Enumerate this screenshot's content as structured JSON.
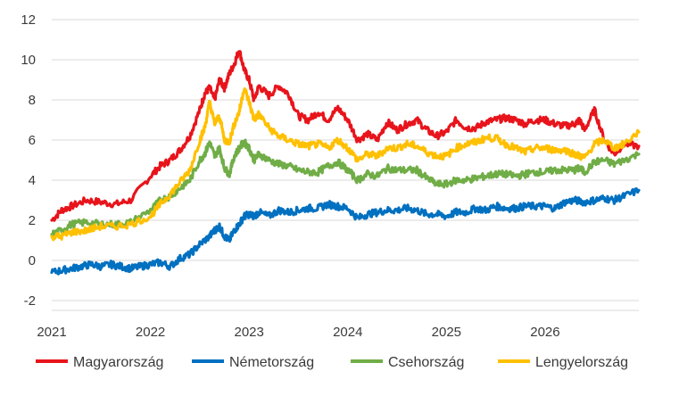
{
  "chart_data": {
    "type": "line",
    "title": "",
    "xlabel": "",
    "ylabel": "",
    "xlim": [
      2021.0,
      2026.95
    ],
    "ylim": [
      -2,
      12
    ],
    "x_ticks": [
      "2021",
      "2022",
      "2023",
      "2024",
      "2025",
      "2026"
    ],
    "y_ticks": [
      "12",
      "10",
      "8",
      "6",
      "4",
      "2",
      "0",
      "-2"
    ],
    "grid": true,
    "legend_position": "bottom",
    "series": [
      {
        "name": "Magyarország",
        "color": "#e8141b",
        "x": [
          2021.0,
          2021.1,
          2021.2,
          2021.35,
          2021.5,
          2021.65,
          2021.8,
          2022.0,
          2022.1,
          2022.2,
          2022.3,
          2022.4,
          2022.5,
          2022.55,
          2022.6,
          2022.65,
          2022.7,
          2022.75,
          2022.8,
          2022.85,
          2022.9,
          2022.95,
          2023.0,
          2023.05,
          2023.1,
          2023.2,
          2023.3,
          2023.4,
          2023.5,
          2023.6,
          2023.7,
          2023.8,
          2023.9,
          2024.0,
          2024.1,
          2024.2,
          2024.3,
          2024.4,
          2024.5,
          2024.6,
          2024.7,
          2024.8,
          2024.9,
          2025.0,
          2025.1,
          2025.2,
          2025.3,
          2025.4,
          2025.5,
          2025.6,
          2025.7,
          2025.8,
          2025.9,
          2026.0,
          2026.1,
          2026.2,
          2026.3,
          2026.35,
          2026.4,
          2026.5,
          2026.6,
          2026.7,
          2026.8,
          2026.95
        ],
        "values": [
          2.0,
          2.5,
          2.7,
          3.0,
          2.9,
          2.8,
          3.0,
          4.2,
          4.7,
          5.0,
          5.5,
          6.2,
          7.5,
          8.3,
          8.6,
          8.0,
          9.0,
          8.6,
          9.3,
          9.8,
          10.5,
          9.5,
          9.0,
          8.0,
          8.7,
          8.2,
          8.7,
          8.3,
          7.2,
          7.0,
          7.4,
          7.0,
          7.6,
          7.0,
          6.0,
          6.3,
          6.0,
          6.9,
          6.5,
          6.8,
          7.0,
          6.5,
          6.2,
          6.4,
          7.0,
          6.6,
          6.6,
          6.9,
          7.0,
          7.1,
          7.0,
          6.8,
          7.0,
          7.0,
          6.8,
          6.7,
          6.8,
          7.0,
          6.5,
          7.5,
          6.0,
          5.3,
          5.8,
          5.7
        ]
      },
      {
        "name": "Németország",
        "color": "#0070c0",
        "x": [
          2021.0,
          2021.1,
          2021.2,
          2021.3,
          2021.4,
          2021.5,
          2021.6,
          2021.7,
          2021.8,
          2021.9,
          2022.0,
          2022.1,
          2022.2,
          2022.3,
          2022.4,
          2022.5,
          2022.6,
          2022.65,
          2022.7,
          2022.75,
          2022.8,
          2022.85,
          2022.9,
          2022.95,
          2023.0,
          2023.05,
          2023.1,
          2023.2,
          2023.3,
          2023.4,
          2023.5,
          2023.6,
          2023.7,
          2023.8,
          2023.9,
          2024.0,
          2024.1,
          2024.2,
          2024.3,
          2024.4,
          2024.5,
          2024.6,
          2024.7,
          2024.8,
          2024.9,
          2025.0,
          2025.1,
          2025.2,
          2025.3,
          2025.4,
          2025.5,
          2025.6,
          2025.7,
          2025.8,
          2025.9,
          2026.0,
          2026.1,
          2026.2,
          2026.3,
          2026.4,
          2026.5,
          2026.6,
          2026.7,
          2026.8,
          2026.95
        ],
        "values": [
          -0.6,
          -0.5,
          -0.4,
          -0.3,
          -0.2,
          -0.3,
          -0.2,
          -0.3,
          -0.4,
          -0.3,
          -0.2,
          -0.1,
          -0.3,
          0.1,
          0.3,
          0.8,
          1.2,
          1.5,
          1.7,
          1.2,
          1.0,
          1.5,
          1.8,
          2.2,
          2.3,
          2.2,
          2.4,
          2.2,
          2.5,
          2.4,
          2.5,
          2.6,
          2.6,
          2.8,
          2.7,
          2.6,
          2.1,
          2.3,
          2.4,
          2.5,
          2.5,
          2.6,
          2.5,
          2.3,
          2.3,
          2.2,
          2.4,
          2.4,
          2.6,
          2.5,
          2.7,
          2.6,
          2.6,
          2.7,
          2.7,
          2.7,
          2.6,
          2.9,
          3.0,
          2.9,
          3.0,
          3.1,
          3.0,
          3.2,
          3.5
        ]
      },
      {
        "name": "Csehország",
        "color": "#70ad47",
        "x": [
          2021.0,
          2021.1,
          2021.2,
          2021.35,
          2021.5,
          2021.65,
          2021.8,
          2022.0,
          2022.1,
          2022.2,
          2022.3,
          2022.4,
          2022.5,
          2022.55,
          2022.6,
          2022.65,
          2022.7,
          2022.75,
          2022.8,
          2022.85,
          2022.9,
          2022.95,
          2023.0,
          2023.05,
          2023.1,
          2023.2,
          2023.3,
          2023.4,
          2023.5,
          2023.6,
          2023.7,
          2023.8,
          2023.9,
          2024.0,
          2024.1,
          2024.2,
          2024.3,
          2024.4,
          2024.5,
          2024.6,
          2024.7,
          2024.8,
          2024.9,
          2025.0,
          2025.1,
          2025.2,
          2025.3,
          2025.4,
          2025.5,
          2025.6,
          2025.7,
          2025.8,
          2025.9,
          2026.0,
          2026.1,
          2026.2,
          2026.3,
          2026.35,
          2026.4,
          2026.5,
          2026.6,
          2026.7,
          2026.8,
          2026.95
        ],
        "values": [
          1.3,
          1.5,
          1.8,
          1.9,
          1.8,
          1.8,
          1.9,
          2.5,
          3.0,
          3.2,
          3.6,
          4.0,
          5.0,
          5.3,
          5.9,
          5.2,
          5.6,
          4.6,
          4.3,
          5.2,
          5.6,
          5.9,
          5.6,
          5.0,
          5.3,
          5.0,
          4.8,
          4.7,
          4.5,
          4.4,
          4.4,
          4.7,
          4.9,
          4.5,
          4.0,
          4.3,
          4.2,
          4.6,
          4.5,
          4.5,
          4.5,
          4.1,
          3.8,
          3.8,
          4.0,
          4.0,
          4.1,
          4.2,
          4.3,
          4.3,
          4.2,
          4.3,
          4.4,
          4.4,
          4.5,
          4.5,
          4.5,
          4.6,
          4.4,
          4.9,
          5.0,
          4.8,
          5.0,
          5.3
        ]
      },
      {
        "name": "Lengyelország",
        "color": "#ffc000",
        "x": [
          2021.0,
          2021.1,
          2021.2,
          2021.35,
          2021.5,
          2021.65,
          2021.8,
          2022.0,
          2022.1,
          2022.2,
          2022.3,
          2022.4,
          2022.5,
          2022.55,
          2022.6,
          2022.65,
          2022.7,
          2022.75,
          2022.8,
          2022.85,
          2022.9,
          2022.95,
          2023.0,
          2023.05,
          2023.1,
          2023.2,
          2023.3,
          2023.4,
          2023.5,
          2023.6,
          2023.7,
          2023.8,
          2023.9,
          2024.0,
          2024.1,
          2024.2,
          2024.3,
          2024.4,
          2024.5,
          2024.6,
          2024.7,
          2024.8,
          2024.9,
          2025.0,
          2025.1,
          2025.2,
          2025.3,
          2025.4,
          2025.5,
          2025.6,
          2025.7,
          2025.8,
          2025.9,
          2026.0,
          2026.1,
          2026.2,
          2026.3,
          2026.35,
          2026.4,
          2026.5,
          2026.6,
          2026.7,
          2026.8,
          2026.95
        ],
        "values": [
          1.2,
          1.2,
          1.4,
          1.5,
          1.7,
          1.7,
          1.8,
          2.2,
          2.8,
          3.3,
          3.9,
          4.5,
          6.0,
          6.6,
          7.9,
          6.8,
          7.2,
          6.0,
          5.9,
          6.8,
          7.4,
          8.6,
          7.9,
          7.0,
          7.3,
          6.6,
          6.2,
          6.0,
          5.8,
          5.7,
          5.8,
          5.6,
          6.0,
          5.6,
          5.0,
          5.3,
          5.2,
          5.6,
          5.6,
          5.8,
          5.7,
          5.4,
          5.2,
          5.2,
          5.6,
          5.8,
          5.9,
          6.1,
          6.1,
          5.8,
          5.6,
          5.4,
          5.6,
          5.6,
          5.5,
          5.5,
          5.3,
          5.2,
          5.1,
          5.8,
          6.0,
          5.6,
          5.8,
          6.4
        ]
      }
    ]
  }
}
